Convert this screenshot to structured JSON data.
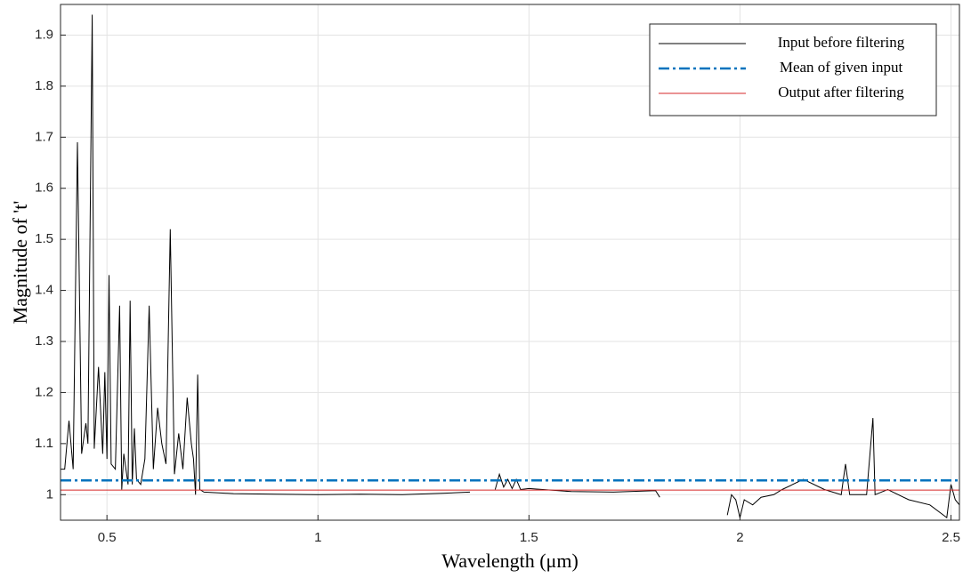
{
  "chart_data": {
    "type": "line",
    "xlabel": "Wavelength (μm)",
    "ylabel": "Magnitude of 't'",
    "xlim": [
      0.39,
      2.52
    ],
    "ylim": [
      0.95,
      1.96
    ],
    "xticks": [
      0.5,
      1,
      1.5,
      2,
      2.5
    ],
    "yticks": [
      1,
      1.1,
      1.2,
      1.3,
      1.4,
      1.5,
      1.6,
      1.7,
      1.8,
      1.9
    ],
    "grid": true,
    "legend": "northeast",
    "series": [
      {
        "name": "Input before filtering",
        "color": "#000000",
        "style": "solid",
        "width": 1,
        "x": [
          0.39,
          0.4,
          0.41,
          0.42,
          0.43,
          0.44,
          0.45,
          0.455,
          0.465,
          0.47,
          0.48,
          0.49,
          0.495,
          0.5,
          0.505,
          0.51,
          0.52,
          0.53,
          0.535,
          0.54,
          0.55,
          0.555,
          0.56,
          0.565,
          0.57,
          0.58,
          0.59,
          0.6,
          0.61,
          0.62,
          0.63,
          0.64,
          0.65,
          0.66,
          0.67,
          0.68,
          0.69,
          0.7,
          0.705,
          0.71,
          0.715,
          0.72,
          0.73,
          0.8,
          0.9,
          1.0,
          1.1,
          1.2,
          1.3,
          1.36,
          1.39,
          1.42,
          1.43,
          1.44,
          1.45,
          1.46,
          1.47,
          1.48,
          1.5,
          1.6,
          1.7,
          1.8,
          1.81,
          1.9,
          1.97,
          1.98,
          1.99,
          2.0,
          2.01,
          2.03,
          2.05,
          2.08,
          2.1,
          2.15,
          2.2,
          2.24,
          2.25,
          2.26,
          2.3,
          2.315,
          2.32,
          2.35,
          2.4,
          2.45,
          2.49,
          2.5,
          2.51,
          2.52
        ],
        "values": [
          1.05,
          1.05,
          1.145,
          1.05,
          1.69,
          1.08,
          1.14,
          1.1,
          1.94,
          1.09,
          1.25,
          1.08,
          1.24,
          1.07,
          1.43,
          1.06,
          1.05,
          1.37,
          1.01,
          1.08,
          1.02,
          1.38,
          1.02,
          1.13,
          1.03,
          1.02,
          1.07,
          1.37,
          1.05,
          1.17,
          1.1,
          1.06,
          1.52,
          1.04,
          1.12,
          1.05,
          1.19,
          1.1,
          1.07,
          1.0,
          1.235,
          1.01,
          1.005,
          1.002,
          1.001,
          1.0,
          1.001,
          1.0,
          1.003,
          1.005,
          null,
          1.01,
          1.04,
          1.015,
          1.03,
          1.012,
          1.03,
          1.01,
          1.012,
          1.006,
          1.005,
          1.008,
          0.995,
          null,
          0.96,
          1.0,
          0.99,
          0.955,
          0.99,
          0.98,
          0.995,
          1.0,
          1.01,
          1.03,
          1.01,
          1.0,
          1.06,
          1.0,
          1.0,
          1.15,
          1.0,
          1.01,
          0.99,
          0.98,
          0.955,
          1.02,
          0.99,
          0.98
        ]
      },
      {
        "name": "Mean of given input",
        "color": "#0072bd",
        "style": "dash-dot",
        "width": 2.5,
        "x": [
          0.39,
          2.52
        ],
        "values": [
          1.028,
          1.028
        ]
      },
      {
        "name": "Output after filtering",
        "color": "#d62728",
        "style": "solid",
        "width": 1,
        "x": [
          0.39,
          2.52
        ],
        "values": [
          1.009,
          1.009
        ]
      }
    ]
  }
}
